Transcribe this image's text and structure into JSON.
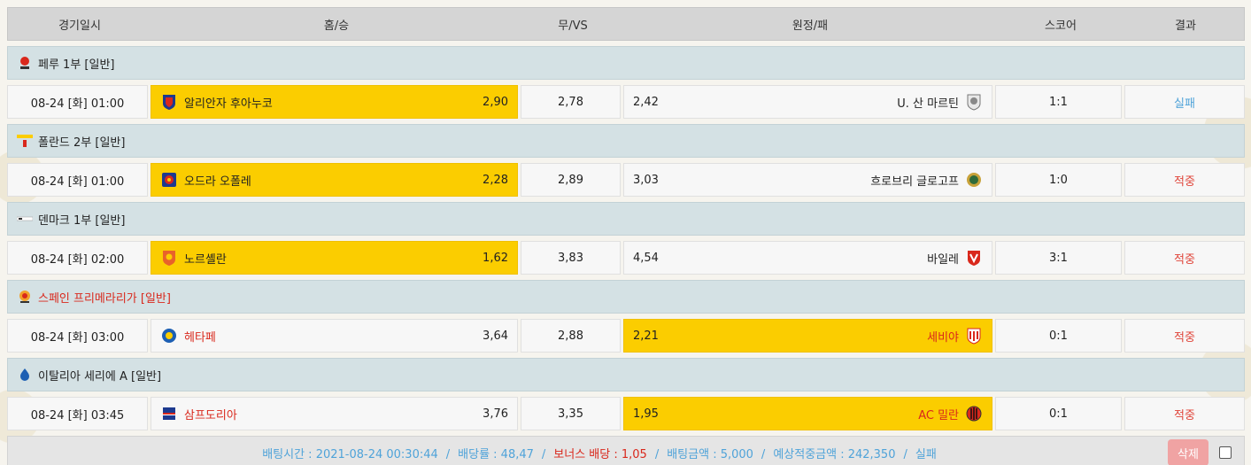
{
  "header": {
    "date": "경기일시",
    "home": "홈/승",
    "draw": "무/VS",
    "away": "원정/패",
    "score": "스코어",
    "result": "결과"
  },
  "colors": {
    "selected": "#fbcd00",
    "league_bg": "#d4e1e4",
    "fail": "#4fa3d9",
    "hit": "#e0453a"
  },
  "matches": [
    {
      "league": "페루 1부 [일반]",
      "league_icon": "peru-league-icon",
      "date": "08-24 [화] 01:00",
      "home_team": "알리안자 후아누코",
      "home_odds": "2,90",
      "draw_odds": "2,78",
      "away_odds": "2,42",
      "away_team": "U. 산 마르틴",
      "score": "1:1",
      "result": "실패"
    },
    {
      "league": "폴란드 2부 [일반]",
      "league_icon": "poland-league-icon",
      "date": "08-24 [화] 01:00",
      "home_team": "오드라 오폴레",
      "home_odds": "2,28",
      "draw_odds": "2,89",
      "away_odds": "3,03",
      "away_team": "흐로브리 글로고프",
      "score": "1:0",
      "result": "적중"
    },
    {
      "league": "덴마크 1부 [일반]",
      "league_icon": "denmark-league-icon",
      "date": "08-24 [화] 02:00",
      "home_team": "노르셸란",
      "home_odds": "1,62",
      "draw_odds": "3,83",
      "away_odds": "4,54",
      "away_team": "바일레",
      "score": "3:1",
      "result": "적중"
    },
    {
      "league": "스페인 프리메라리가 [일반]",
      "league_icon": "laliga-icon",
      "date": "08-24 [화] 03:00",
      "home_team": "헤타페",
      "home_odds": "3,64",
      "draw_odds": "2,88",
      "away_odds": "2,21",
      "away_team": "세비야",
      "score": "0:1",
      "result": "적중"
    },
    {
      "league": "이탈리아 세리에 A [일반]",
      "league_icon": "serie-a-icon",
      "date": "08-24 [화] 03:45",
      "home_team": "삼프도리아",
      "home_odds": "3,76",
      "draw_odds": "3,35",
      "away_odds": "1,95",
      "away_team": "AC 밀란",
      "score": "0:1",
      "result": "적중"
    }
  ],
  "footer": {
    "bet_time": "배팅시간 : 2021-08-24 00:30:44",
    "odds": "배당률 : 48,47",
    "bonus": "보너스 배당 : 1,05",
    "amount": "배팅금액 : 5,000",
    "expected": "예상적중금액 : 242,350",
    "status": "실패",
    "separator": "/",
    "delete_label": "삭제"
  }
}
